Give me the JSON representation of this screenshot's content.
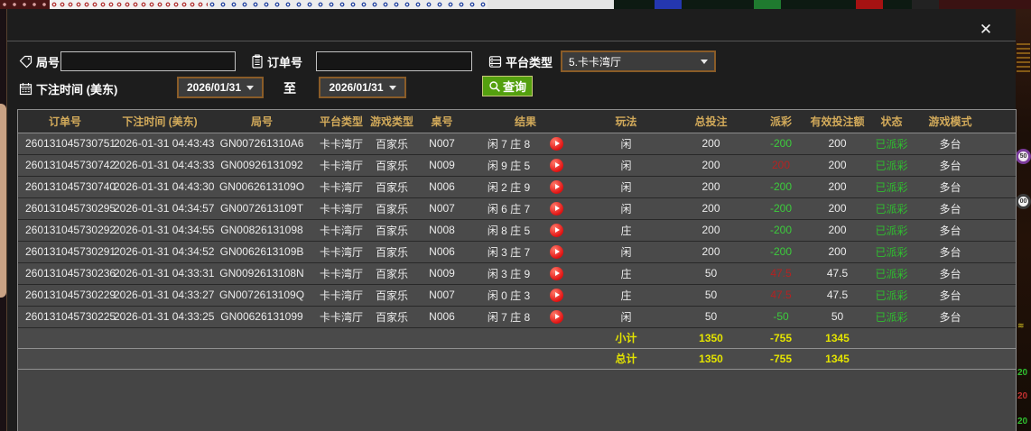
{
  "background": {
    "right_edge": {
      "chip_top": "50",
      "chip_bottom": "00",
      "numbers": [
        "20",
        "20",
        "20"
      ],
      "chevrons": "≋"
    }
  },
  "modal": {
    "close_icon": "✕",
    "filters": {
      "game_no_label": "局号",
      "order_no_label": "订单号",
      "platform_label": "平台类型",
      "platform_value": "5.卡卡湾厅",
      "bet_time_label": "下注时间 (美东)",
      "date_from": "2026/01/31",
      "to_label": "至",
      "date_to": "2026/01/31",
      "search_label": "查询"
    },
    "table": {
      "headers": [
        "订单号",
        "下注时间 (美东)",
        "局号",
        "平台类型",
        "游戏类型",
        "桌号",
        "结果",
        "玩法",
        "总投注",
        "派彩",
        "有效投注额",
        "状态",
        "游戏模式",
        ""
      ],
      "rows": [
        {
          "order": "260131045730751",
          "time": "2026-01-31 04:43:43",
          "game": "GN007261310A6",
          "platform": "卡卡湾厅",
          "game_type": "百家乐",
          "table_no": "N007",
          "result": "闲 7 庄 8",
          "play": "闲",
          "total_bet": "200",
          "payout": "-200",
          "valid_bet": "200",
          "status": "已派彩",
          "mode": "多台"
        },
        {
          "order": "260131045730742",
          "time": "2026-01-31 04:43:33",
          "game": "GN00926131092",
          "platform": "卡卡湾厅",
          "game_type": "百家乐",
          "table_no": "N009",
          "result": "闲 9 庄 5",
          "play": "闲",
          "total_bet": "200",
          "payout": "200",
          "valid_bet": "200",
          "status": "已派彩",
          "mode": "多台"
        },
        {
          "order": "260131045730740",
          "time": "2026-01-31 04:43:30",
          "game": "GN0062613109O",
          "platform": "卡卡湾厅",
          "game_type": "百家乐",
          "table_no": "N006",
          "result": "闲 2 庄 9",
          "play": "闲",
          "total_bet": "200",
          "payout": "-200",
          "valid_bet": "200",
          "status": "已派彩",
          "mode": "多台"
        },
        {
          "order": "260131045730295",
          "time": "2026-01-31 04:34:57",
          "game": "GN0072613109T",
          "platform": "卡卡湾厅",
          "game_type": "百家乐",
          "table_no": "N007",
          "result": "闲 6 庄 7",
          "play": "闲",
          "total_bet": "200",
          "payout": "-200",
          "valid_bet": "200",
          "status": "已派彩",
          "mode": "多台"
        },
        {
          "order": "260131045730292",
          "time": "2026-01-31 04:34:55",
          "game": "GN00826131098",
          "platform": "卡卡湾厅",
          "game_type": "百家乐",
          "table_no": "N008",
          "result": "闲 8 庄 5",
          "play": "庄",
          "total_bet": "200",
          "payout": "-200",
          "valid_bet": "200",
          "status": "已派彩",
          "mode": "多台"
        },
        {
          "order": "260131045730291",
          "time": "2026-01-31 04:34:52",
          "game": "GN0062613109B",
          "platform": "卡卡湾厅",
          "game_type": "百家乐",
          "table_no": "N006",
          "result": "闲 3 庄 7",
          "play": "闲",
          "total_bet": "200",
          "payout": "-200",
          "valid_bet": "200",
          "status": "已派彩",
          "mode": "多台"
        },
        {
          "order": "260131045730236",
          "time": "2026-01-31 04:33:31",
          "game": "GN0092613108N",
          "platform": "卡卡湾厅",
          "game_type": "百家乐",
          "table_no": "N009",
          "result": "闲 3 庄 9",
          "play": "庄",
          "total_bet": "50",
          "payout": "47.5",
          "valid_bet": "47.5",
          "status": "已派彩",
          "mode": "多台"
        },
        {
          "order": "260131045730229",
          "time": "2026-01-31 04:33:27",
          "game": "GN0072613109Q",
          "platform": "卡卡湾厅",
          "game_type": "百家乐",
          "table_no": "N007",
          "result": "闲 0 庄 3",
          "play": "庄",
          "total_bet": "50",
          "payout": "47.5",
          "valid_bet": "47.5",
          "status": "已派彩",
          "mode": "多台"
        },
        {
          "order": "260131045730225",
          "time": "2026-01-31 04:33:25",
          "game": "GN00626131099",
          "platform": "卡卡湾厅",
          "game_type": "百家乐",
          "table_no": "N006",
          "result": "闲 7 庄 8",
          "play": "闲",
          "total_bet": "50",
          "payout": "-50",
          "valid_bet": "50",
          "status": "已派彩",
          "mode": "多台"
        }
      ],
      "subtotal": {
        "label": "小计",
        "total_bet": "1350",
        "payout": "-755",
        "valid_bet": "1345"
      },
      "total": {
        "label": "总计",
        "total_bet": "1350",
        "payout": "-755",
        "valid_bet": "1345"
      }
    }
  },
  "colors": {
    "header_gold": "#d2aa5a",
    "win_red": "#b42222",
    "loss_green": "#3ccc3c",
    "status_green": "#2fbe2f",
    "totals_yellow": "#e4e400",
    "search_button_green": "#54a00f",
    "picker_border_orange": "#8a5c28"
  }
}
